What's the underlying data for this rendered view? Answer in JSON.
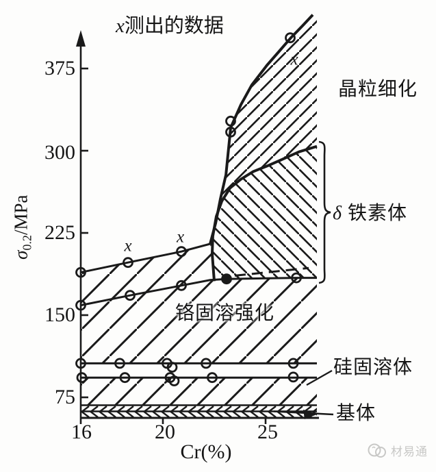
{
  "title": {
    "x_symbol": "x",
    "text": "测出的数据"
  },
  "axes": {
    "y_label": {
      "sigma": "σ",
      "sub": "0.2",
      "unit": "/MPa"
    },
    "x_label": "Cr(%)",
    "y_ticks": [
      "375",
      "300",
      "225",
      "150",
      "75"
    ],
    "x_ticks": [
      "16",
      "20",
      "25"
    ]
  },
  "labels": {
    "grain_refinement": "晶粒细化",
    "delta_symbol": "δ",
    "delta_ferrite": "铁素体",
    "cr_solid_solution": "铬固溶强化",
    "si_solid_solution": "硅固溶体",
    "matrix": "基体"
  },
  "watermark": {
    "text": "材易通"
  },
  "colors": {
    "ink": "#1a1a1a",
    "background": "#fdfdfc",
    "watermark": "#c8c8c6"
  },
  "chart_data": {
    "type": "line",
    "title": "x测出的数据",
    "xlabel": "Cr(%)",
    "ylabel": "σ0.2/MPa",
    "x_ticks": [
      16,
      20,
      25
    ],
    "y_ticks": [
      75,
      150,
      225,
      300,
      375
    ],
    "x_range": [
      16,
      27.5
    ],
    "y_range_visible": [
      56,
      425
    ],
    "series": [
      {
        "name": "measured-yield-strength-low-cr",
        "style": "solid-markers",
        "points": [
          [
            16,
            189
          ],
          [
            18.3,
            198
          ],
          [
            20.9,
            208
          ],
          [
            22.3,
            215
          ]
        ],
        "markers": [
          [
            16,
            189
          ],
          [
            18.3,
            198
          ],
          [
            20.9,
            208
          ]
        ]
      },
      {
        "name": "grain-refinement-curve",
        "style": "thick-curve",
        "points": [
          [
            22.3,
            215
          ],
          [
            22.57,
            234
          ],
          [
            22.8,
            256
          ],
          [
            23.07,
            278
          ],
          [
            23.3,
            321
          ],
          [
            23.8,
            342
          ],
          [
            24.33,
            360
          ],
          [
            25.07,
            378
          ],
          [
            25.63,
            390
          ],
          [
            26.23,
            403
          ],
          [
            26.8,
            414
          ],
          [
            27.3,
            424
          ]
        ],
        "markers": [
          [
            23.3,
            327
          ],
          [
            23.3,
            317
          ],
          [
            26.2,
            403
          ]
        ]
      },
      {
        "name": "delta-ferrite-upper-curve",
        "style": "thick-curve",
        "points": [
          [
            22.5,
            181
          ],
          [
            22.4,
            206
          ],
          [
            22.43,
            222
          ],
          [
            22.6,
            240
          ],
          [
            22.87,
            254
          ],
          [
            23.27,
            266
          ],
          [
            23.8,
            274
          ],
          [
            24.4,
            281
          ],
          [
            25.07,
            286
          ],
          [
            25.8,
            292
          ],
          [
            26.63,
            299
          ],
          [
            27.5,
            304
          ]
        ],
        "markers": []
      },
      {
        "name": "cr-solid-solution-line",
        "style": "solid-markers",
        "points": [
          [
            16,
            159
          ],
          [
            18.4,
            168
          ],
          [
            20.9,
            177
          ],
          [
            22.3,
            182
          ],
          [
            23.1,
            183
          ],
          [
            26.5,
            184
          ],
          [
            27.5,
            184
          ]
        ],
        "markers": [
          [
            16,
            159
          ],
          [
            18.4,
            168
          ],
          [
            20.9,
            177
          ],
          [
            23.1,
            183
          ],
          [
            26.5,
            184
          ]
        ],
        "filled_marker_index": 3
      },
      {
        "name": "cr-solution-extrapolation-dashed",
        "style": "dashed",
        "points": [
          [
            23.5,
            186
          ],
          [
            27.1,
            193
          ]
        ],
        "markers": []
      },
      {
        "name": "si-solid-solution-upper-line",
        "style": "solid-markers",
        "points": [
          [
            16,
            106
          ],
          [
            27.5,
            106
          ]
        ],
        "markers": [
          [
            16,
            106
          ],
          [
            17.9,
            106
          ],
          [
            20.2,
            106
          ],
          [
            20.45,
            102.5
          ],
          [
            22.1,
            106
          ],
          [
            26.35,
            106
          ]
        ]
      },
      {
        "name": "si-solid-solution-lower-line",
        "style": "solid-markers",
        "points": [
          [
            16,
            93
          ],
          [
            27.5,
            93
          ]
        ],
        "markers": [
          [
            16.05,
            93
          ],
          [
            18.15,
            93
          ],
          [
            20.35,
            93
          ],
          [
            20.55,
            90
          ],
          [
            22.4,
            93
          ],
          [
            26.35,
            93.5
          ]
        ]
      },
      {
        "name": "matrix-band-top-line",
        "style": "solid",
        "points": [
          [
            16,
            67.8
          ],
          [
            27.5,
            67.8
          ]
        ],
        "markers": []
      }
    ],
    "annotations": {
      "x_marks": [
        [
          18.3,
          212
        ],
        [
          20.85,
          220
        ],
        [
          26.4,
          382
        ]
      ]
    },
    "regions": [
      {
        "name": "grain-refinement",
        "label": "晶粒细化",
        "hatch": "dense-forward"
      },
      {
        "name": "delta-ferrite",
        "label": "δ铁素体",
        "hatch": "dense-back"
      },
      {
        "name": "cr-solid-solution",
        "label": "铬固溶强化",
        "hatch": "wide-forward"
      },
      {
        "name": "si-solid-solution",
        "label": "硅固溶体",
        "hatch": "wide-forward"
      },
      {
        "name": "matrix",
        "label": "基体",
        "hatch": "chevron"
      }
    ]
  }
}
